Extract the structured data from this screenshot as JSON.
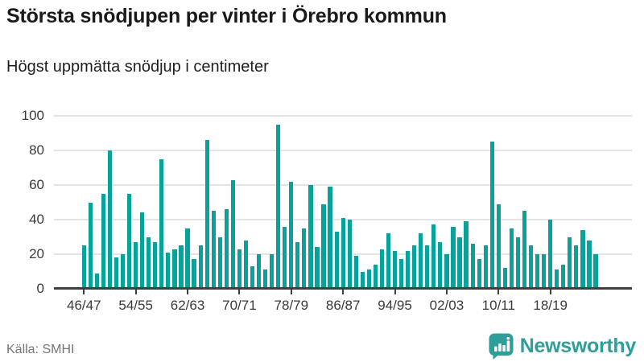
{
  "header": {
    "title": "Största snödjupen per vinter i Örebro kommun",
    "subtitle": "Högst uppmätta snödjup i centimeter"
  },
  "chart_data": {
    "type": "bar",
    "title": "Största snödjupen per vinter i Örebro kommun",
    "subtitle": "Högst uppmätta snödjup i centimeter",
    "unit": "cm",
    "xlabel": "",
    "ylabel": "",
    "ylim": [
      0,
      100
    ],
    "yticks": [
      0,
      20,
      40,
      60,
      80,
      100
    ],
    "grid": true,
    "legend": "none",
    "bar_color": "#07a29a",
    "axis_color": "#3f3f3f",
    "gridline_color": "#e4e4e4",
    "tick_label_color": "#3a3a3a",
    "x_tick_indices": [
      0,
      8,
      16,
      24,
      32,
      40,
      48,
      56,
      64,
      72
    ],
    "x_tick_labels": [
      "46/47",
      "54/55",
      "62/63",
      "70/71",
      "78/79",
      "86/87",
      "94/95",
      "02/03",
      "10/11",
      "18/19"
    ],
    "categories": [
      "46/47",
      "47/48",
      "48/49",
      "49/50",
      "50/51",
      "51/52",
      "52/53",
      "53/54",
      "54/55",
      "55/56",
      "56/57",
      "57/58",
      "58/59",
      "59/60",
      "60/61",
      "61/62",
      "62/63",
      "63/64",
      "64/65",
      "65/66",
      "66/67",
      "67/68",
      "68/69",
      "69/70",
      "70/71",
      "71/72",
      "72/73",
      "73/74",
      "74/75",
      "75/76",
      "76/77",
      "77/78",
      "78/79",
      "79/80",
      "80/81",
      "81/82",
      "82/83",
      "83/84",
      "84/85",
      "85/86",
      "86/87",
      "87/88",
      "88/89",
      "89/90",
      "90/91",
      "91/92",
      "92/93",
      "93/94",
      "94/95",
      "95/96",
      "96/97",
      "97/98",
      "98/99",
      "99/00",
      "00/01",
      "01/02",
      "02/03",
      "03/04",
      "04/05",
      "05/06",
      "06/07",
      "07/08",
      "08/09",
      "09/10",
      "10/11",
      "11/12",
      "12/13",
      "13/14",
      "14/15",
      "15/16",
      "16/17",
      "17/18",
      "18/19",
      "19/20",
      "20/21",
      "21/22",
      "22/23",
      "23/24",
      "24/25",
      "25/26"
    ],
    "values": [
      25,
      50,
      9,
      55,
      80,
      18,
      20,
      55,
      27,
      44,
      30,
      27,
      75,
      21,
      23,
      25,
      35,
      17,
      25,
      86,
      45,
      30,
      46,
      63,
      23,
      28,
      13,
      20,
      11,
      20,
      95,
      36,
      62,
      27,
      35,
      60,
      24,
      49,
      59,
      33,
      41,
      40,
      19,
      10,
      11,
      14,
      23,
      32,
      22,
      17,
      22,
      25,
      32,
      25,
      37,
      27,
      20,
      36,
      30,
      39,
      26,
      17,
      25,
      85,
      49,
      12,
      35,
      30,
      45,
      25,
      20,
      20,
      40,
      11,
      14,
      30,
      25,
      34,
      28,
      20
    ]
  },
  "footer": {
    "source": "Källa: SMHI",
    "brand": "Newsworthy",
    "brand_color": "#2f9e99",
    "logo_icon": "bar-chart-speech-bubble"
  }
}
